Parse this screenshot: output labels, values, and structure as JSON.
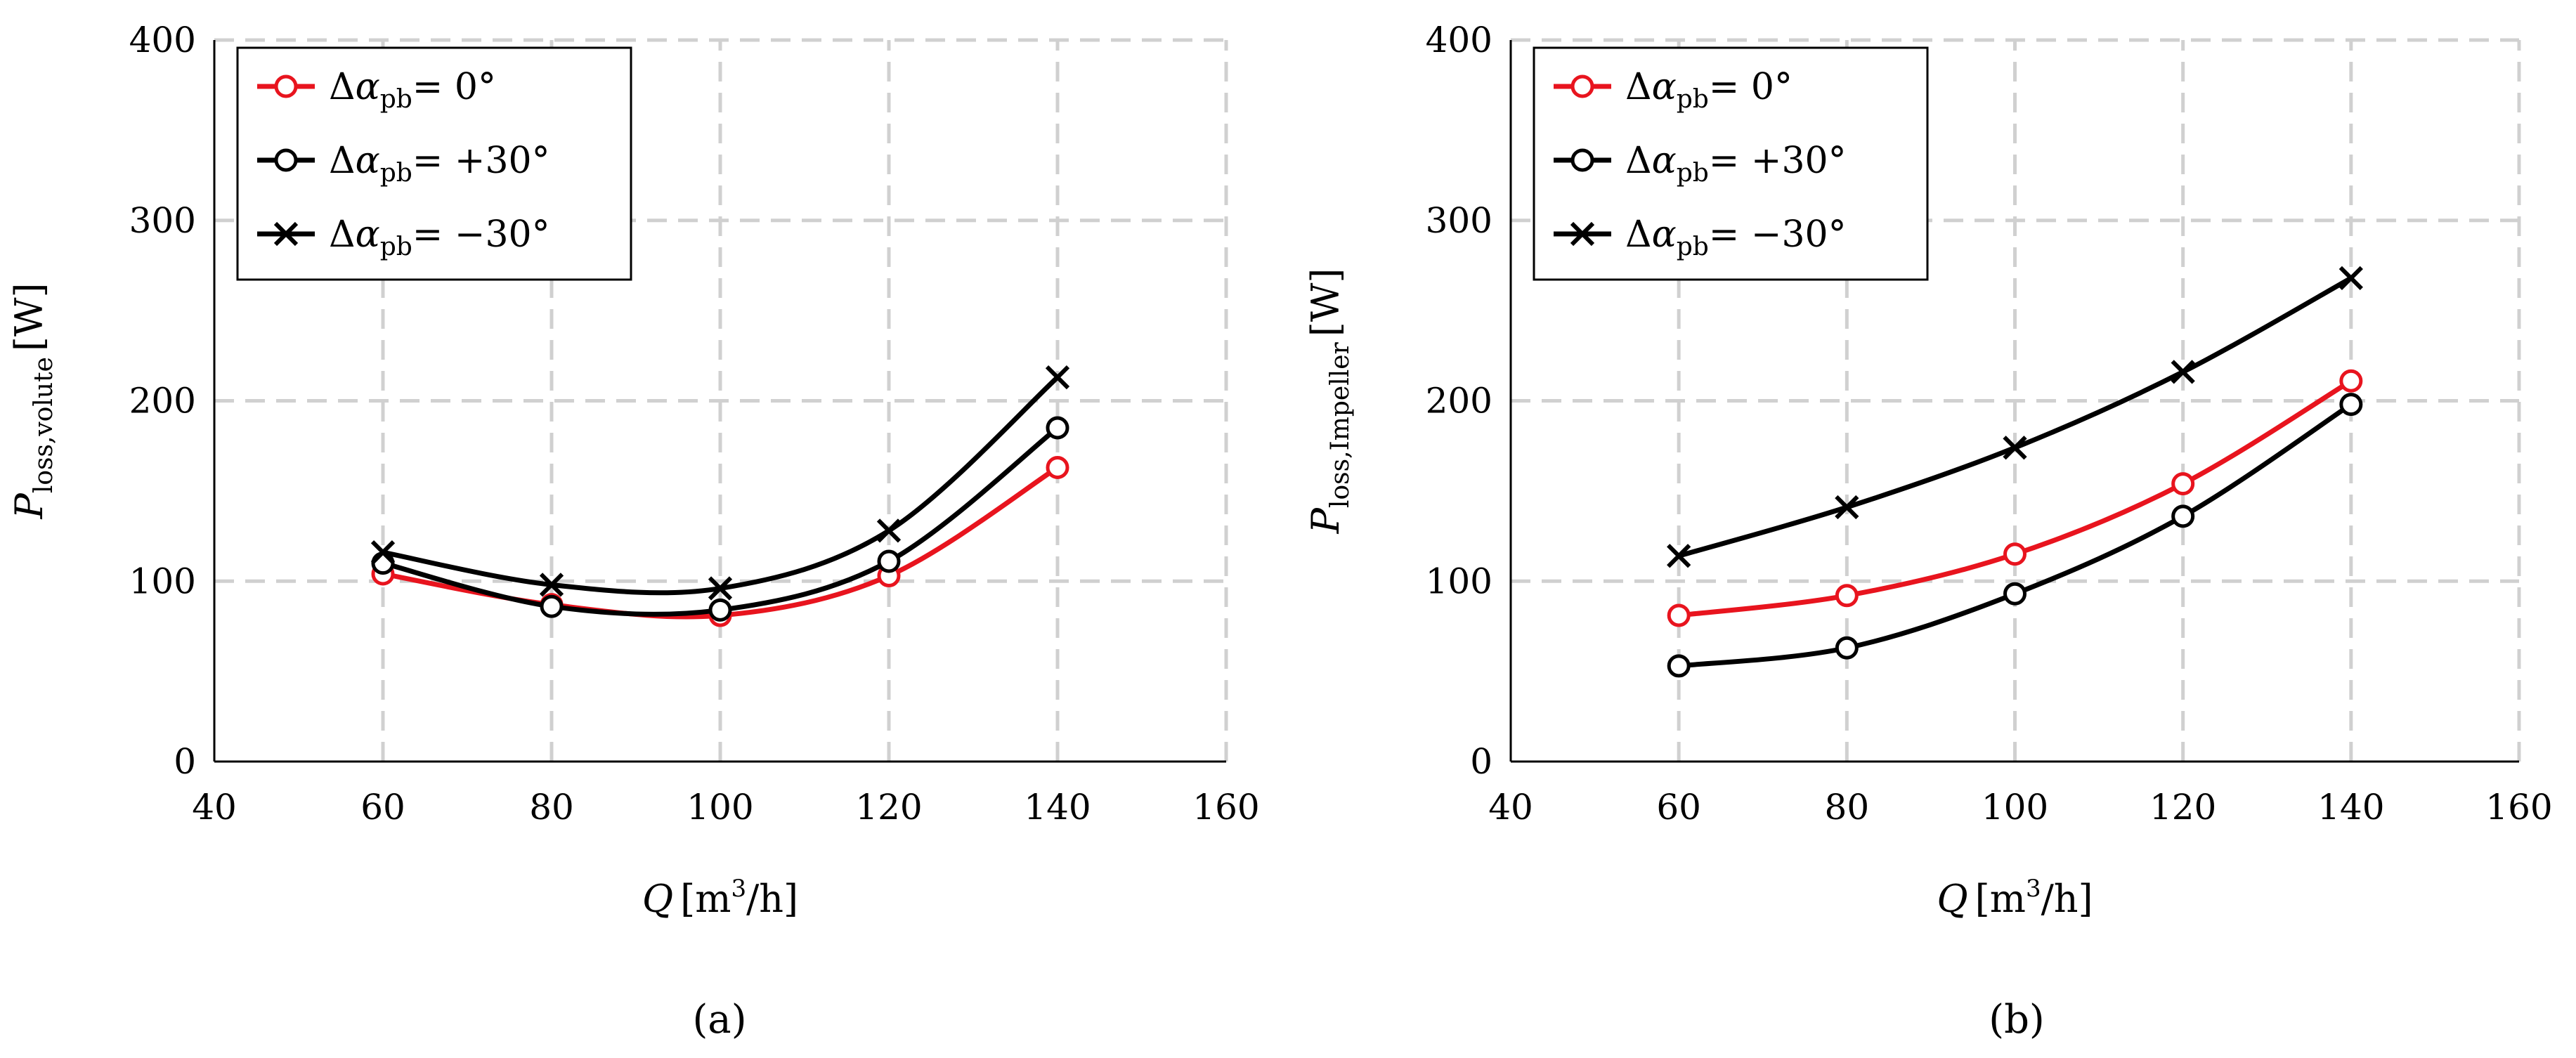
{
  "chart_data": [
    {
      "type": "line",
      "panel_label": "(a)",
      "xlabel": {
        "var": "Q",
        "unit_pre": "[m",
        "unit_sup": "3",
        "unit_post": "/h]"
      },
      "ylabel": {
        "var": "P",
        "sub": "loss,volute",
        "unit": "[W]"
      },
      "xlim": [
        40,
        160
      ],
      "ylim": [
        0,
        400
      ],
      "x_ticks": [
        "40",
        "60",
        "80",
        "100",
        "120",
        "140",
        "160"
      ],
      "y_ticks": [
        "0",
        "100",
        "200",
        "300",
        "400"
      ],
      "grid": true,
      "legend_position": "top-left",
      "x": [
        60,
        80,
        100,
        120,
        140
      ],
      "series": [
        {
          "name": "Δα_pb= 0°",
          "legend_pre": "Δ",
          "legend_var": "α",
          "legend_sub": "pb",
          "legend_post": "= 0°",
          "color": "#e8141e",
          "marker": "circle",
          "values": [
            104,
            87,
            81,
            103,
            163
          ]
        },
        {
          "name": "Δα_pb= +30°",
          "legend_pre": "Δ",
          "legend_var": "α",
          "legend_sub": "pb",
          "legend_post": "= +30°",
          "color": "#000000",
          "marker": "circle",
          "values": [
            110,
            86,
            84,
            111,
            185
          ]
        },
        {
          "name": "Δα_pb= −30°",
          "legend_pre": "Δ",
          "legend_var": "α",
          "legend_sub": "pb",
          "legend_post": "= −30°",
          "color": "#000000",
          "marker": "cross",
          "values": [
            116,
            98,
            96,
            128,
            213
          ]
        }
      ]
    },
    {
      "type": "line",
      "panel_label": "(b)",
      "xlabel": {
        "var": "Q",
        "unit_pre": "[m",
        "unit_sup": "3",
        "unit_post": "/h]"
      },
      "ylabel": {
        "var": "P",
        "sub": "loss,Impeller",
        "unit": "[W]"
      },
      "xlim": [
        40,
        160
      ],
      "ylim": [
        0,
        400
      ],
      "x_ticks": [
        "40",
        "60",
        "80",
        "100",
        "120",
        "140",
        "160"
      ],
      "y_ticks": [
        "0",
        "100",
        "200",
        "300",
        "400"
      ],
      "grid": true,
      "legend_position": "top-left",
      "x": [
        60,
        80,
        100,
        120,
        140
      ],
      "series": [
        {
          "name": "Δα_pb= 0°",
          "legend_pre": "Δ",
          "legend_var": "α",
          "legend_sub": "pb",
          "legend_post": "= 0°",
          "color": "#e8141e",
          "marker": "circle",
          "values": [
            81,
            92,
            115,
            154,
            211
          ]
        },
        {
          "name": "Δα_pb= +30°",
          "legend_pre": "Δ",
          "legend_var": "α",
          "legend_sub": "pb",
          "legend_post": "= +30°",
          "color": "#000000",
          "marker": "circle",
          "values": [
            53,
            63,
            93,
            136,
            198
          ]
        },
        {
          "name": "Δα_pb= −30°",
          "legend_pre": "Δ",
          "legend_var": "α",
          "legend_sub": "pb",
          "legend_post": "= −30°",
          "color": "#000000",
          "marker": "cross",
          "values": [
            114,
            141,
            174,
            216,
            268
          ]
        }
      ]
    }
  ]
}
